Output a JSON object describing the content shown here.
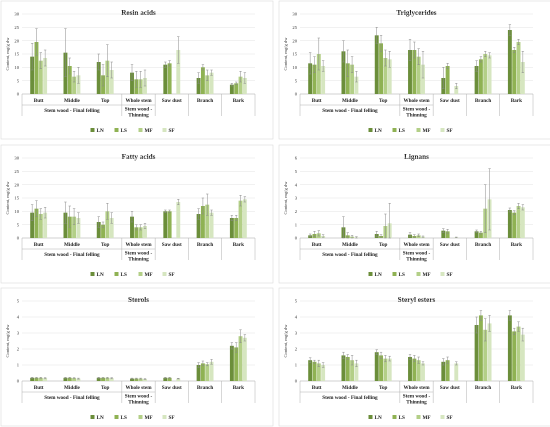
{
  "series_names": [
    "LN",
    "LS",
    "MF",
    "SF"
  ],
  "colors": {
    "LN": "#6b8e3a",
    "LS": "#8fb253",
    "MF": "#b3cf87",
    "SF": "#d6e6c0"
  },
  "chart_data": [
    {
      "type": "bar",
      "title": "Resin acids",
      "ylabel": "Content, mg/g dw",
      "ylim": [
        0,
        30
      ],
      "yticks": [
        0,
        5,
        10,
        15,
        20,
        25,
        30
      ],
      "categories": [
        "Butt",
        "Middle",
        "Top",
        "Whole stem",
        "Saw dust",
        "Branch",
        "Bark"
      ],
      "groups": [
        "Stem wood - Final felling",
        "Stem wood - Thinning"
      ],
      "legend": "bottom",
      "series": [
        {
          "name": "LN",
          "values": [
            14,
            15.5,
            12,
            8,
            11,
            6,
            3.5
          ],
          "errors": [
            5,
            9,
            3,
            3,
            1,
            2,
            0.5
          ]
        },
        {
          "name": "LS",
          "values": [
            19.5,
            10.5,
            7,
            5.5,
            11.5,
            10,
            4
          ],
          "errors": [
            5,
            3,
            4,
            3,
            1,
            1,
            0.5
          ]
        },
        {
          "name": "MF",
          "values": [
            12.5,
            6.5,
            12.5,
            5.5,
            null,
            7,
            6.5
          ],
          "errors": [
            3,
            2,
            6,
            3,
            null,
            2,
            2
          ]
        },
        {
          "name": "SF",
          "values": [
            13.5,
            7,
            9,
            6,
            16.5,
            8,
            6
          ],
          "errors": [
            3,
            3,
            3,
            3,
            5,
            1,
            2
          ]
        }
      ]
    },
    {
      "type": "bar",
      "title": "Triglycerides",
      "ylabel": "Content, mg/g dw",
      "ylim": [
        0,
        30
      ],
      "yticks": [
        0,
        5,
        10,
        15,
        20,
        25,
        30
      ],
      "categories": [
        "Butt",
        "Middle",
        "Top",
        "Whole stem",
        "Saw dust",
        "Branch",
        "Bark"
      ],
      "groups": [
        "Stem wood - Final felling",
        "Stem wood - Thinning"
      ],
      "legend": "bottom",
      "series": [
        {
          "name": "LN",
          "values": [
            11.5,
            16,
            22,
            16.5,
            6,
            10.5,
            24
          ],
          "errors": [
            4,
            4,
            3,
            4,
            4,
            2,
            2
          ]
        },
        {
          "name": "LS",
          "values": [
            11,
            11.5,
            19,
            16.5,
            10.5,
            13,
            16.5
          ],
          "errors": [
            3,
            5,
            3,
            3,
            1,
            1,
            1
          ]
        },
        {
          "name": "MF",
          "values": [
            15,
            11,
            13.5,
            14,
            null,
            15,
            19.5
          ],
          "errors": [
            6,
            3,
            3,
            3,
            null,
            1,
            1
          ]
        },
        {
          "name": "SF",
          "values": [
            10.5,
            6.5,
            13,
            11,
            3,
            14.5,
            12
          ],
          "errors": [
            2,
            2,
            3,
            5,
            1,
            1,
            4
          ]
        }
      ]
    },
    {
      "type": "bar",
      "title": "Fatty acids",
      "ylabel": "Content, mg/g dw",
      "ylim": [
        0,
        30
      ],
      "yticks": [
        0,
        5,
        10,
        15,
        20,
        25,
        30
      ],
      "categories": [
        "Butt",
        "Middle",
        "Top",
        "Whole stem",
        "Saw dust",
        "Branch",
        "Bark"
      ],
      "groups": [
        "Stem wood - Final felling",
        "Stem wood - Thinning"
      ],
      "legend": "bottom",
      "series": [
        {
          "name": "LN",
          "values": [
            9.5,
            9.5,
            6,
            8,
            10,
            9,
            7.5
          ],
          "errors": [
            3,
            4,
            2,
            2,
            0.5,
            2,
            1
          ]
        },
        {
          "name": "LS",
          "values": [
            11,
            8,
            5,
            4,
            10,
            12,
            7.5
          ],
          "errors": [
            3,
            4,
            1,
            1,
            0.5,
            3,
            1
          ]
        },
        {
          "name": "MF",
          "values": [
            9,
            8,
            10,
            4,
            null,
            12.5,
            14
          ],
          "errors": [
            2,
            3,
            3,
            1,
            null,
            4,
            2
          ]
        },
        {
          "name": "SF",
          "values": [
            9.5,
            7.5,
            7.5,
            4.5,
            13.5,
            9.5,
            14.5
          ],
          "errors": [
            2,
            2,
            2,
            1,
            1,
            1,
            1
          ]
        }
      ]
    },
    {
      "type": "bar",
      "title": "Lignans",
      "ylabel": "Content, mg/g dw",
      "ylim": [
        0,
        6
      ],
      "yticks": [
        0,
        1,
        2,
        3,
        4,
        5,
        6
      ],
      "categories": [
        "Butt",
        "Middle",
        "Top",
        "Whole stem",
        "Saw dust",
        "Branch",
        "Bark"
      ],
      "groups": [
        "Stem wood - Final felling",
        "Stem wood - Thinning"
      ],
      "legend": "bottom",
      "series": [
        {
          "name": "LN",
          "values": [
            0.2,
            0.8,
            0.3,
            0.25,
            0.55,
            0.5,
            2.1
          ],
          "errors": [
            0.1,
            0.8,
            0.2,
            0.15,
            0.15,
            0.1,
            0.15
          ]
        },
        {
          "name": "LS",
          "values": [
            0.3,
            0.2,
            0.15,
            0.15,
            0.5,
            0.4,
            1.9
          ],
          "errors": [
            0.2,
            0.2,
            0.1,
            0.1,
            0.15,
            0.1,
            0.15
          ]
        },
        {
          "name": "MF",
          "values": [
            0.35,
            0.1,
            0.9,
            0.2,
            null,
            2.2,
            2.4
          ],
          "errors": [
            0.2,
            0.1,
            0.9,
            0.1,
            null,
            1.8,
            0.2
          ]
        },
        {
          "name": "SF",
          "values": [
            0.15,
            0.05,
            1.1,
            0.1,
            0.05,
            2.9,
            2.3
          ],
          "errors": [
            0.1,
            0.05,
            1.5,
            0.05,
            0.02,
            2.3,
            0.2
          ]
        }
      ]
    },
    {
      "type": "bar",
      "title": "Sterols",
      "ylabel": "Content, mg/g dw",
      "ylim": [
        0,
        5
      ],
      "yticks": [
        0,
        1,
        2,
        3,
        4,
        5
      ],
      "categories": [
        "Butt",
        "Middle",
        "Top",
        "Whole stem",
        "Saw dust",
        "Branch",
        "Bark"
      ],
      "groups": [
        "Stem wood - Final felling",
        "Stem wood - Thinning"
      ],
      "legend": "bottom",
      "series": [
        {
          "name": "LN",
          "values": [
            0.2,
            0.2,
            0.2,
            0.15,
            0.2,
            1.0,
            2.2
          ],
          "errors": [
            0.03,
            0.03,
            0.03,
            0.03,
            0.03,
            0.15,
            0.2
          ]
        },
        {
          "name": "LS",
          "values": [
            0.2,
            0.2,
            0.2,
            0.15,
            0.2,
            1.1,
            2.1
          ],
          "errors": [
            0.03,
            0.03,
            0.03,
            0.03,
            0.03,
            0.15,
            0.3
          ]
        },
        {
          "name": "MF",
          "values": [
            0.2,
            0.18,
            0.2,
            0.15,
            null,
            1.05,
            2.8
          ],
          "errors": [
            0.03,
            0.03,
            0.03,
            0.03,
            null,
            0.1,
            0.4
          ]
        },
        {
          "name": "SF",
          "values": [
            0.18,
            0.15,
            0.18,
            0.12,
            0.15,
            1.2,
            2.7
          ],
          "errors": [
            0.03,
            0.03,
            0.03,
            0.03,
            0.02,
            0.15,
            0.2
          ]
        }
      ]
    },
    {
      "type": "bar",
      "title": "Steryl esters",
      "ylabel": "Content, mg/g dw",
      "ylim": [
        0,
        5
      ],
      "yticks": [
        0,
        1,
        2,
        3,
        4,
        5
      ],
      "categories": [
        "Butt",
        "Middle",
        "Top",
        "Whole stem",
        "Saw dust",
        "Branch",
        "Bark"
      ],
      "groups": [
        "Stem wood - Final felling",
        "Stem wood - Thinning"
      ],
      "legend": "bottom",
      "series": [
        {
          "name": "LN",
          "values": [
            1.3,
            1.6,
            1.8,
            1.5,
            1.2,
            3.5,
            4.1
          ],
          "errors": [
            0.15,
            0.2,
            0.15,
            0.15,
            0.2,
            0.5,
            0.3
          ]
        },
        {
          "name": "LS",
          "values": [
            1.2,
            1.5,
            1.6,
            1.4,
            1.3,
            4.1,
            3.1
          ],
          "errors": [
            0.1,
            0.15,
            0.2,
            0.2,
            0.2,
            0.3,
            0.2
          ]
        },
        {
          "name": "MF",
          "values": [
            1.1,
            1.3,
            1.4,
            1.3,
            null,
            3.2,
            3.4
          ],
          "errors": [
            0.2,
            0.3,
            0.2,
            0.2,
            null,
            0.7,
            0.3
          ]
        },
        {
          "name": "SF",
          "values": [
            1.0,
            1.1,
            1.4,
            1.1,
            1.1,
            3.6,
            2.9
          ],
          "errors": [
            0.15,
            0.2,
            0.15,
            0.1,
            0.1,
            0.5,
            0.4
          ]
        }
      ]
    }
  ]
}
